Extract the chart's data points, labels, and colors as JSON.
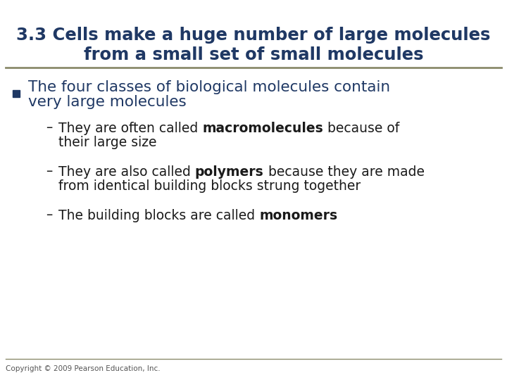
{
  "title_line1": "3.3 Cells make a huge number of large molecules",
  "title_line2": "from a small set of small molecules",
  "title_color": "#1F3864",
  "separator_color": "#8B8B6B",
  "bullet_square_color": "#1F3864",
  "bullet_text_color": "#1F3864",
  "body_text_color": "#1a1a1a",
  "background_color": "#FFFFFF",
  "copyright": "Copyright © 2009 Pearson Education, Inc.",
  "title_fontsize": 17.5,
  "bullet_fontsize": 15.5,
  "sub_fontsize": 13.5,
  "copyright_fontsize": 7.5
}
